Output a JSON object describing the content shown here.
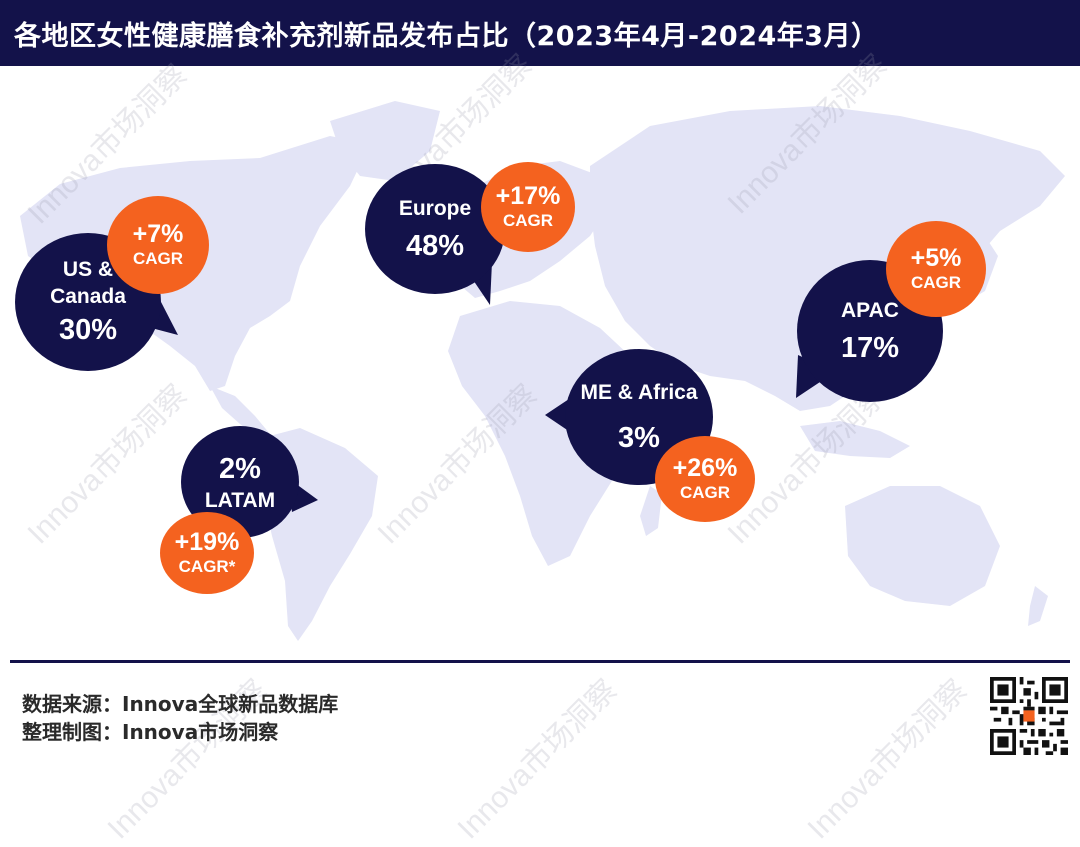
{
  "title": "各地区女性健康膳食补充剂新品发布占比（2023年4月-2024年3月）",
  "chart_data": {
    "type": "map",
    "title": "各地区女性健康膳食补充剂新品发布占比（2023年4月-2024年3月）",
    "regions": [
      {
        "name": "US & Canada",
        "name_lines": [
          "US &",
          "Canada"
        ],
        "share": "30%",
        "cagr": "+7%",
        "cagr_label": "CAGR"
      },
      {
        "name": "Europe",
        "name_lines": [
          "Europe"
        ],
        "share": "48%",
        "cagr": "+17%",
        "cagr_label": "CAGR"
      },
      {
        "name": "APAC",
        "name_lines": [
          "APAC"
        ],
        "share": "17%",
        "cagr": "+5%",
        "cagr_label": "CAGR"
      },
      {
        "name": "ME & Africa",
        "name_lines": [
          "ME & Africa"
        ],
        "share": "3%",
        "cagr": "+26%",
        "cagr_label": "CAGR"
      },
      {
        "name": "LATAM",
        "name_lines": [
          "LATAM"
        ],
        "share": "2%",
        "cagr": "+19%",
        "cagr_label": "CAGR*"
      }
    ]
  },
  "watermark": "Innova市场洞察",
  "footer": {
    "source": "数据来源：Innova全球新品数据库",
    "made_by": "整理制图：Innova市场洞察"
  },
  "colors": {
    "navy": "#13124a",
    "orange": "#f4621f",
    "map": "#e3e4f6"
  }
}
